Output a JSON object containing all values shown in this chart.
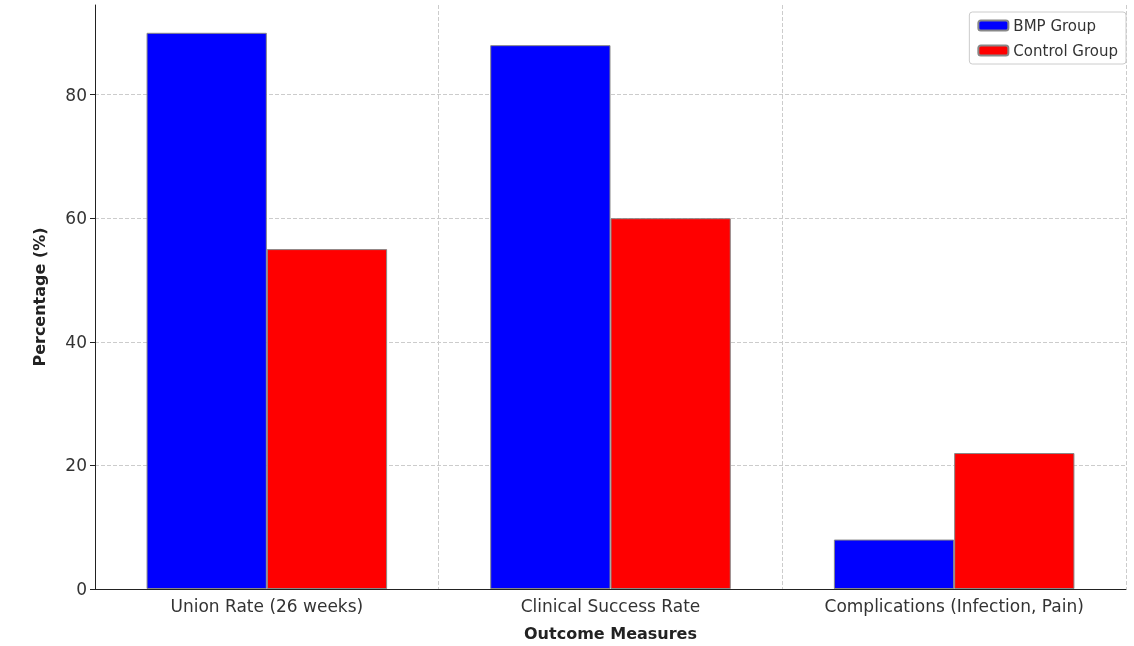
{
  "chart_data": {
    "type": "bar",
    "xlabel": "Outcome Measures",
    "ylabel": "Percentage (%)",
    "categories": [
      "Union Rate (26 weeks)",
      "Clinical Success Rate",
      "Complications (Infection, Pain)"
    ],
    "series": [
      {
        "name": "BMP Group",
        "color": "#0000ff",
        "values": [
          90,
          88,
          8
        ]
      },
      {
        "name": "Control Group",
        "color": "#ff0000",
        "values": [
          55,
          60,
          22
        ]
      }
    ],
    "ylim": [
      0,
      94.5
    ],
    "yticks": [
      0,
      20,
      40,
      60,
      80
    ],
    "grid": true,
    "legend": "top right"
  }
}
